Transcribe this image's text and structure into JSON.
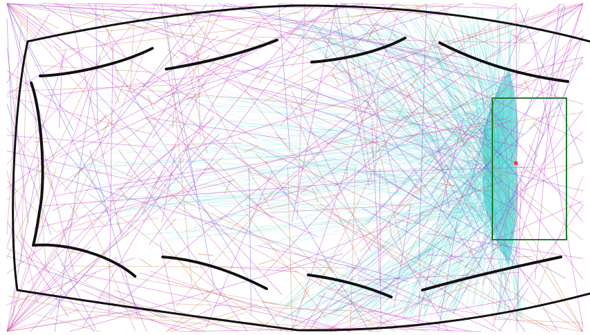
{
  "canvas": {
    "background": "#ffffff"
  },
  "colors": {
    "wall": "#111111",
    "ray_teal": "#2ec8c8",
    "ray_magenta": "#c83ad0",
    "ray_pink": "#e0709a",
    "ray_blue": "#6a5ae0",
    "ray_tan": "#c88a5a",
    "target_box": "#1e7a2a",
    "focus_point": "#ff3a3a"
  },
  "scene": {
    "shape": "elongated-chamber",
    "wall_segments": 10,
    "has_target_box": true,
    "has_focus_point": true,
    "ray_families": [
      "teal-fan",
      "magenta-scatter",
      "pink-scatter",
      "blue-scatter",
      "tan-arrows"
    ]
  }
}
